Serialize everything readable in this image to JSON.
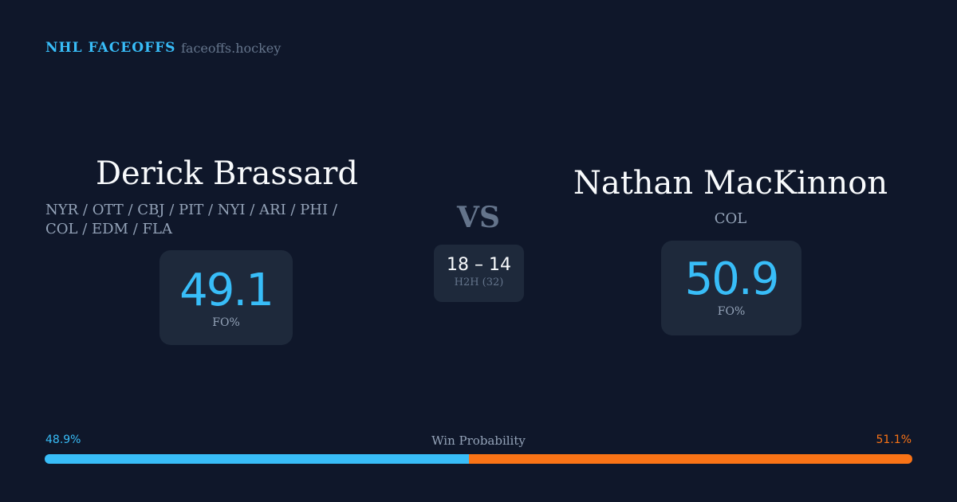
{
  "header": {
    "brand": "NHL FACEOFFS",
    "site": "faceoffs.hockey"
  },
  "player1": {
    "name": "Derick Brassard",
    "teams": "NYR / OTT / CBJ / PIT / NYI / ARI / PHI / COL / EDM / FLA",
    "fo_pct": "49.1",
    "fo_label": "FO%"
  },
  "player2": {
    "name": "Nathan MacKinnon",
    "teams": "COL",
    "fo_pct": "50.9",
    "fo_label": "FO%"
  },
  "vs": "VS",
  "h2h": {
    "score": "18 – 14",
    "label": "H2H (32)"
  },
  "win_prob": {
    "label": "Win Probability",
    "left": "48.9%",
    "right": "51.1%",
    "left_value": 48.9,
    "left_color": "#38bdf8",
    "right_color": "#f97316"
  }
}
